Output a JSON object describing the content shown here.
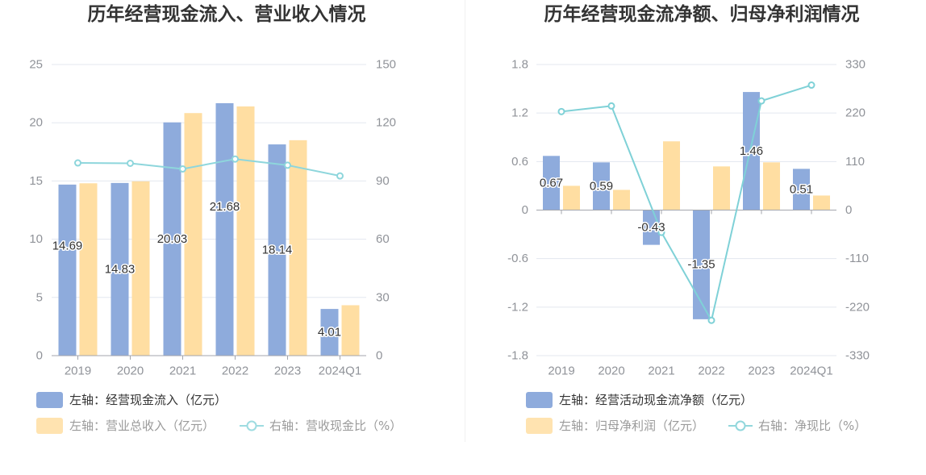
{
  "chart_data": [
    {
      "type": "bar",
      "title": "历年经营现金流入、营业收入情况",
      "categories": [
        "2019",
        "2020",
        "2021",
        "2022",
        "2023",
        "2024Q1"
      ],
      "y_axis_left": {
        "range": [
          0,
          25
        ],
        "ticks": [
          25,
          20,
          15,
          10,
          5,
          0
        ]
      },
      "y_axis_right": {
        "range": [
          0,
          150
        ],
        "ticks": [
          150,
          120,
          90,
          60,
          30,
          0
        ]
      },
      "grid": true,
      "legend_position": "bottom-left",
      "series": [
        {
          "name": "左轴：经营现金流入（亿元）",
          "type": "bar",
          "axis": "left",
          "color": "#8eabdc",
          "values": [
            14.69,
            14.83,
            20.03,
            21.68,
            18.14,
            4.01
          ],
          "data_labels": true
        },
        {
          "name": "左轴：营业总收入（亿元）",
          "type": "bar",
          "axis": "left",
          "color": "#ffdea2",
          "values": [
            14.8,
            14.97,
            20.83,
            21.4,
            18.5,
            4.33
          ]
        },
        {
          "name": "右轴：营收现金比（%）",
          "type": "line",
          "axis": "right",
          "color": "#8ed6dc",
          "values": [
            99.3,
            99.1,
            96.2,
            101.3,
            98.1,
            92.6
          ]
        }
      ]
    },
    {
      "type": "bar",
      "title": "历年经营现金流净额、归母净利润情况",
      "categories": [
        "2019",
        "2020",
        "2021",
        "2022",
        "2023",
        "2024Q1"
      ],
      "y_axis_left": {
        "range": [
          -1.8,
          1.8
        ],
        "ticks": [
          1.8,
          1.2,
          0.6,
          0,
          -0.6,
          -1.2,
          -1.8
        ]
      },
      "y_axis_right": {
        "range": [
          -330,
          330
        ],
        "ticks": [
          330,
          220,
          110,
          0,
          -110,
          -220,
          -330
        ]
      },
      "grid": true,
      "legend_position": "bottom-left",
      "series": [
        {
          "name": "左轴：经营活动现金流净额（亿元）",
          "type": "bar",
          "axis": "left",
          "color": "#8eabdc",
          "values": [
            0.67,
            0.59,
            -0.43,
            -1.35,
            1.46,
            0.51
          ],
          "data_labels": true
        },
        {
          "name": "左轴：归母净利润（亿元）",
          "type": "bar",
          "axis": "left",
          "color": "#ffdea2",
          "values": [
            0.3,
            0.25,
            0.85,
            0.54,
            0.59,
            0.18
          ]
        },
        {
          "name": "右轴：净现比（%）",
          "type": "line",
          "axis": "right",
          "color": "#7fd1d7",
          "values": [
            223.3,
            236.0,
            -50.6,
            -250.0,
            247.5,
            283.3
          ]
        }
      ]
    }
  ]
}
